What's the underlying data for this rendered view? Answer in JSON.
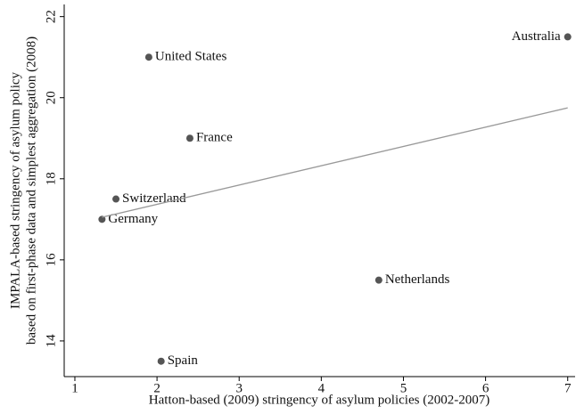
{
  "chart_data": {
    "type": "scatter",
    "xlabel": "Hatton-based (2009) stringency of asylum policies (2002-2007)",
    "ylabel": [
      "IMPALA-based stringency of asylum policy",
      "based on first-phase data and simplest aggregation (2008)"
    ],
    "xlim": [
      0.87,
      7.09
    ],
    "ylim": [
      13.12,
      22.3
    ],
    "xticks": [
      1,
      2,
      3,
      4,
      5,
      6,
      7
    ],
    "yticks": [
      14,
      16,
      18,
      20,
      22
    ],
    "series": [
      {
        "name": "Countries",
        "color": "#555555",
        "labels": [
          "United States",
          "Australia",
          "France",
          "Switzerland",
          "Germany",
          "Netherlands",
          "Spain"
        ],
        "x": [
          1.9,
          7.0,
          2.4,
          1.5,
          1.33,
          4.7,
          2.05
        ],
        "values": [
          21.0,
          21.5,
          19.0,
          17.5,
          17.0,
          15.5,
          13.5
        ]
      },
      {
        "name": "Fit",
        "color": "#999999",
        "x": [
          1.33,
          7.0
        ],
        "values": [
          17.05,
          19.75
        ]
      }
    ]
  }
}
